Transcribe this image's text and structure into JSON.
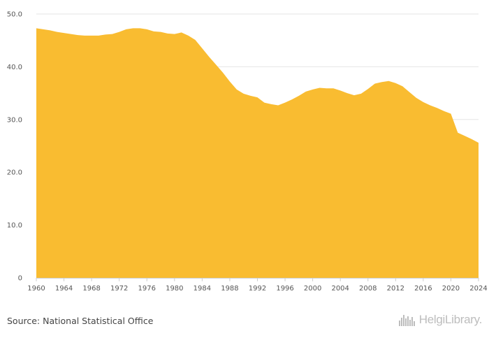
{
  "chart_data": {
    "type": "area",
    "title": "",
    "xlabel": "",
    "ylabel": "",
    "ylim": [
      0,
      50
    ],
    "xlim": [
      1960,
      2024
    ],
    "y_ticks": [
      "0",
      "10.0",
      "20.0",
      "30.0",
      "40.0",
      "50.0"
    ],
    "x_ticks": [
      "1960",
      "1964",
      "1968",
      "1972",
      "1976",
      "1980",
      "1984",
      "1988",
      "1992",
      "1996",
      "2000",
      "2004",
      "2008",
      "2012",
      "2016",
      "2020",
      "2024"
    ],
    "grid": true,
    "color": "#F9BC31",
    "series": [
      {
        "x": [
          1960,
          1961,
          1962,
          1963,
          1964,
          1965,
          1966,
          1967,
          1968,
          1969,
          1970,
          1971,
          1972,
          1973,
          1974,
          1975,
          1976,
          1977,
          1978,
          1979,
          1980,
          1981,
          1982,
          1983,
          1984,
          1985,
          1986,
          1987,
          1988,
          1989,
          1990,
          1991,
          1992,
          1993,
          1994,
          1995,
          1996,
          1997,
          1998,
          1999,
          2000,
          2001,
          2002,
          2003,
          2004,
          2005,
          2006,
          2007,
          2008,
          2009,
          2010,
          2011,
          2012,
          2013,
          2014,
          2015,
          2016,
          2017,
          2018,
          2019,
          2020,
          2021,
          2022,
          2023,
          2024
        ],
        "values": [
          47.3,
          47.1,
          46.9,
          46.6,
          46.4,
          46.2,
          46.0,
          45.9,
          45.9,
          45.9,
          46.1,
          46.2,
          46.6,
          47.1,
          47.3,
          47.3,
          47.1,
          46.7,
          46.6,
          46.3,
          46.2,
          46.5,
          45.9,
          45.1,
          43.5,
          41.9,
          40.4,
          38.9,
          37.2,
          35.7,
          34.9,
          34.5,
          34.2,
          33.2,
          32.9,
          32.7,
          33.2,
          33.8,
          34.5,
          35.3,
          35.7,
          36.0,
          35.9,
          35.9,
          35.5,
          35.0,
          34.6,
          34.9,
          35.8,
          36.8,
          37.1,
          37.3,
          36.9,
          36.3,
          35.2,
          34.1,
          33.3,
          32.7,
          32.2,
          31.6,
          31.1,
          27.5,
          26.9,
          26.3,
          25.6
        ]
      }
    ]
  },
  "footer": {
    "source": "Source: National Statistical Office",
    "brand": "HelgiLibrary.",
    "brand_icon": "building-skyline-icon"
  }
}
